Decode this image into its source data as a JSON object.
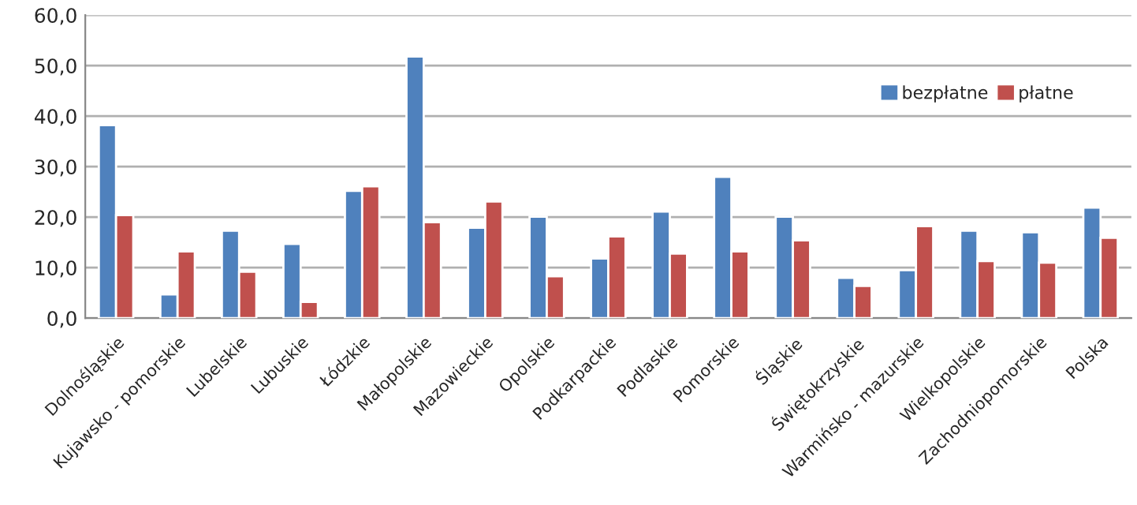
{
  "chart_data": {
    "type": "bar",
    "categories": [
      "Dolnośląskie",
      "Kujawsko - pomorskie",
      "Lubelskie",
      "Lubuskie",
      "Łódzkie",
      "Małopolskie",
      "Mazowieckie",
      "Opolskie",
      "Podkarpackie",
      "Podlaskie",
      "Pomorskie",
      "Śląskie",
      "Świętokrzyskie",
      "Warmińsko - mazurskie",
      "Wielkopolskie",
      "Zachodniopomorskie",
      "Polska"
    ],
    "series": [
      {
        "name": "bezpłatne",
        "color": "#4f81bd",
        "values": [
          38.2,
          4.7,
          17.3,
          14.7,
          25.2,
          51.8,
          17.9,
          20.1,
          11.8,
          21.1,
          28.0,
          20.1,
          8.0,
          9.5,
          17.3,
          17.0,
          21.9
        ]
      },
      {
        "name": "płatne",
        "color": "#c0504d",
        "values": [
          20.4,
          13.2,
          9.2,
          3.2,
          26.1,
          19.0,
          23.1,
          8.3,
          16.2,
          12.8,
          13.2,
          15.4,
          6.4,
          18.2,
          11.3,
          11.0,
          15.9
        ]
      }
    ],
    "ylim": [
      0,
      60
    ],
    "yticks": [
      {
        "value": 0,
        "label": "0,0"
      },
      {
        "value": 10,
        "label": "10,0"
      },
      {
        "value": 20,
        "label": "20,0"
      },
      {
        "value": 30,
        "label": "30,0"
      },
      {
        "value": 40,
        "label": "40,0"
      },
      {
        "value": 50,
        "label": "50,0"
      },
      {
        "value": 60,
        "label": "60,0"
      }
    ],
    "grid": "y",
    "legend": "top right"
  }
}
